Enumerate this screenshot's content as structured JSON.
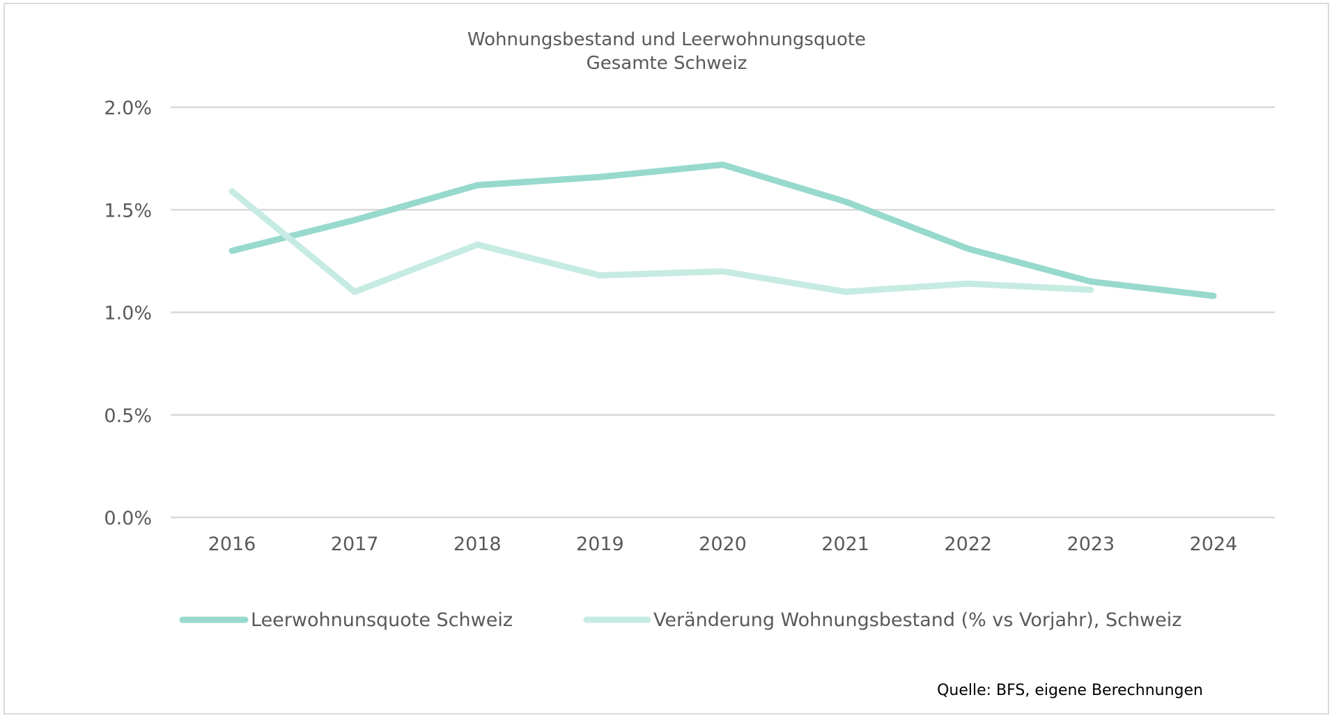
{
  "chart_data": {
    "type": "line",
    "title": "Wohnungsbestand und Leerwohnungsquote",
    "subtitle": "Gesamte Schweiz",
    "x": [
      "2016",
      "2017",
      "2018",
      "2019",
      "2020",
      "2021",
      "2022",
      "2023",
      "2024"
    ],
    "y_ticks": [
      "0.0%",
      "0.5%",
      "1.0%",
      "1.5%",
      "2.0%"
    ],
    "ylim": [
      0,
      2.0
    ],
    "y_unit": "%",
    "grid": true,
    "legend_position": "bottom",
    "series": [
      {
        "name": "Leerwohnunsquote Schweiz",
        "color": "#97d9cd",
        "values": [
          1.3,
          1.45,
          1.62,
          1.66,
          1.72,
          1.54,
          1.31,
          1.15,
          1.08
        ]
      },
      {
        "name": "Veränderung Wohnungsbestand (% vs Vorjahr), Schweiz",
        "color": "#c6ebe3",
        "values": [
          1.59,
          1.1,
          1.33,
          1.18,
          1.2,
          1.1,
          1.14,
          1.11,
          null
        ]
      }
    ],
    "source": "Quelle: BFS, eigene Berechnungen"
  }
}
